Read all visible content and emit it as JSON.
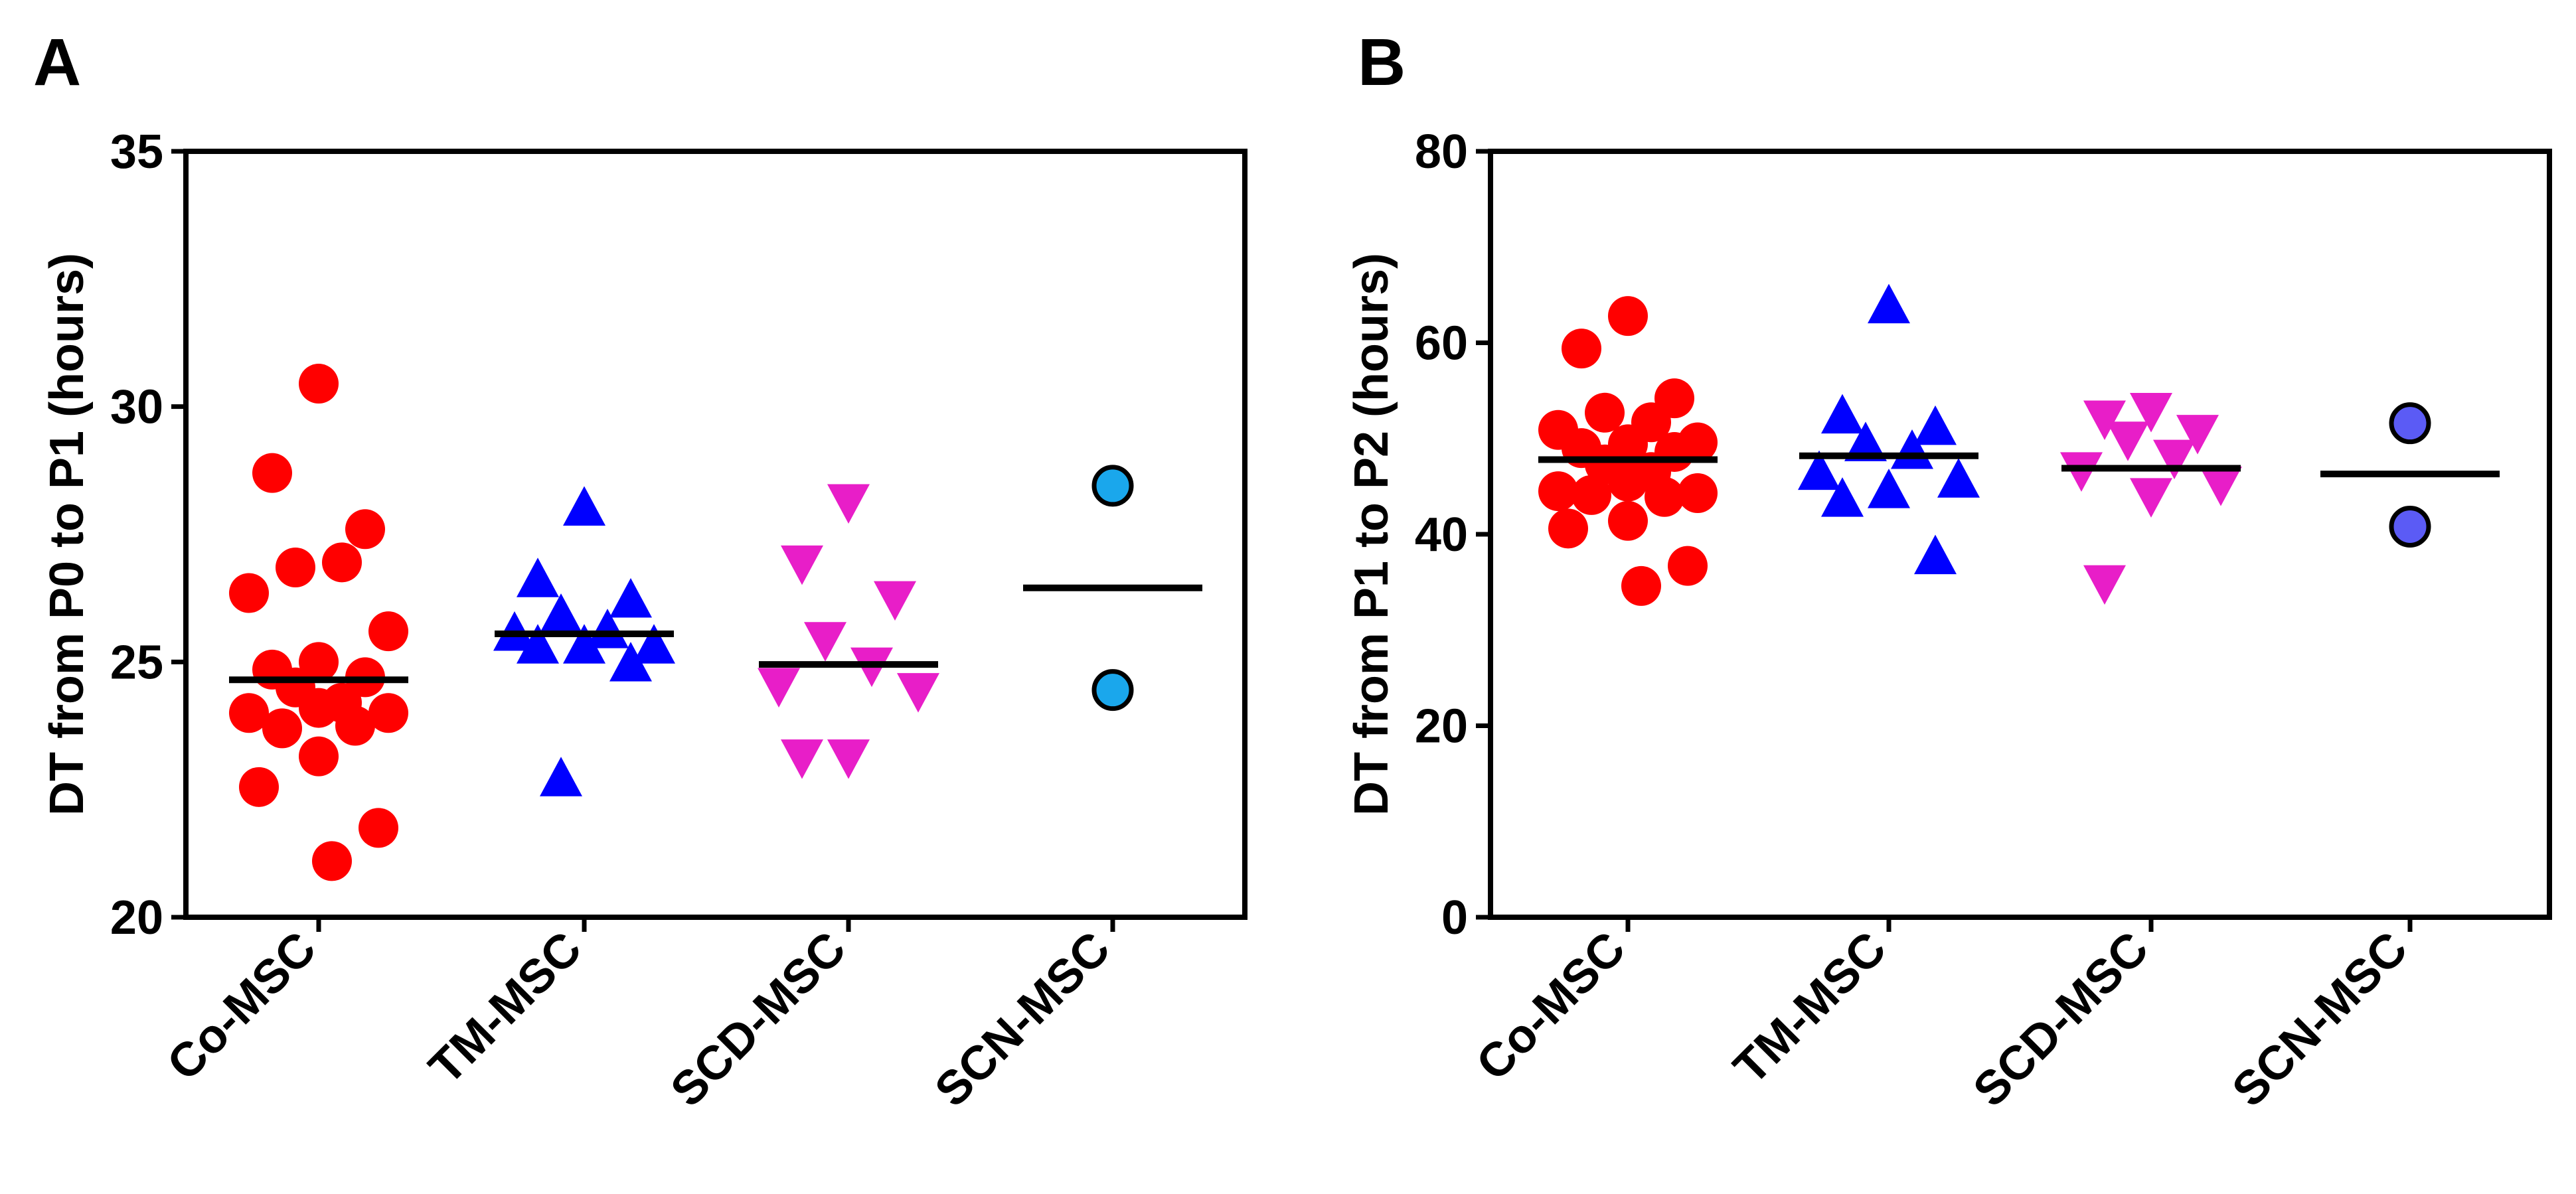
{
  "chart_data": [
    {
      "panel": "A",
      "type": "scatter",
      "ylabel": "DT from P0 to P1 (hours)",
      "ylim": [
        20,
        35
      ],
      "yticks": [
        20,
        25,
        30,
        35
      ],
      "ytick_labels": [
        "20",
        "25",
        "30",
        "35"
      ],
      "categories": [
        "Co-MSC",
        "TM-MSC",
        "SCD-MSC",
        "SCN-MSC"
      ],
      "series": [
        {
          "name": "Co-MSC",
          "marker": "circle",
          "color": "#ff0000",
          "mean": 24.65,
          "values": [
            30.45,
            28.7,
            27.6,
            26.85,
            26.95,
            26.35,
            25.6,
            25.0,
            24.85,
            24.7,
            24.5,
            24.2,
            24.1,
            24.0,
            24.0,
            23.7,
            23.75,
            23.15,
            22.55,
            21.75,
            21.1
          ]
        },
        {
          "name": "TM-MSC",
          "marker": "triangle-up",
          "color": "#0000ff",
          "mean": 25.55,
          "values": [
            28.0,
            26.6,
            26.2,
            25.9,
            25.6,
            25.55,
            25.3,
            25.3,
            25.3,
            24.95,
            22.7
          ]
        },
        {
          "name": "SCD-MSC",
          "marker": "triangle-down",
          "color": "#e81ec8",
          "mean": 24.95,
          "values": [
            28.15,
            26.95,
            26.25,
            25.45,
            24.95,
            24.55,
            24.45,
            23.15,
            23.15
          ]
        },
        {
          "name": "SCN-MSC",
          "marker": "circle-outlined",
          "color": "#1aa7ec",
          "mean": 26.45,
          "values": [
            28.45,
            24.45
          ]
        }
      ]
    },
    {
      "panel": "B",
      "type": "scatter",
      "ylabel": "DT from P1 to P2 (hours)",
      "ylim": [
        0,
        80
      ],
      "yticks": [
        0,
        20,
        40,
        60,
        80
      ],
      "ytick_labels": [
        "0",
        "20",
        "40",
        "60",
        "80"
      ],
      "categories": [
        "Co-MSC",
        "TM-MSC",
        "SCD-MSC",
        "SCN-MSC"
      ],
      "series": [
        {
          "name": "Co-MSC",
          "marker": "circle",
          "color": "#ff0000",
          "mean": 47.8,
          "values": [
            62.8,
            59.4,
            54.2,
            52.7,
            51.7,
            50.9,
            49.6,
            49.4,
            49.0,
            48.6,
            47.3,
            46.5,
            45.5,
            44.5,
            44.3,
            44.1,
            43.9,
            41.4,
            40.6,
            36.7,
            34.6
          ]
        },
        {
          "name": "TM-MSC",
          "marker": "triangle-up",
          "color": "#0000ff",
          "mean": 48.2,
          "values": [
            63.8,
            52.3,
            51.1,
            49.4,
            48.6,
            46.4,
            45.6,
            44.5,
            43.6,
            37.6
          ]
        },
        {
          "name": "SCD-MSC",
          "marker": "triangle-down",
          "color": "#e81ec8",
          "mean": 46.9,
          "values": [
            53.0,
            52.2,
            50.7,
            50.0,
            48.1,
            46.8,
            45.3,
            44.1,
            35.0
          ]
        },
        {
          "name": "SCN-MSC",
          "marker": "circle-outlined",
          "color": "#5b5bf5",
          "mean": 46.3,
          "values": [
            51.6,
            40.8
          ]
        }
      ]
    }
  ]
}
